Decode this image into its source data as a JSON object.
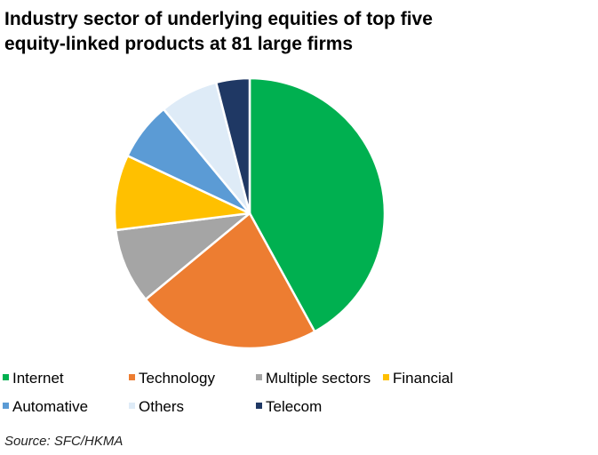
{
  "title_lines": [
    "Industry sector of underlying equities of top five",
    "equity-linked products at 81 large firms"
  ],
  "source": "Source: SFC/HKMA",
  "chart_data": {
    "type": "pie",
    "title": "Industry sector of underlying equities of top five equity-linked products at 81 large firms",
    "legend_position": "bottom",
    "start_angle_deg": 0,
    "direction": "clockwise",
    "slices": [
      {
        "label": "Internet",
        "value": 42,
        "color": "#00b050"
      },
      {
        "label": "Technology",
        "value": 22,
        "color": "#ed7d31"
      },
      {
        "label": "Multiple sectors",
        "value": 9,
        "color": "#a5a5a5"
      },
      {
        "label": "Financial",
        "value": 9,
        "color": "#ffc000"
      },
      {
        "label": "Automative",
        "value": 7,
        "color": "#5b9bd5"
      },
      {
        "label": "Others",
        "value": 7,
        "color": "#deebf7"
      },
      {
        "label": "Telecom",
        "value": 4,
        "color": "#1f3864"
      }
    ]
  }
}
